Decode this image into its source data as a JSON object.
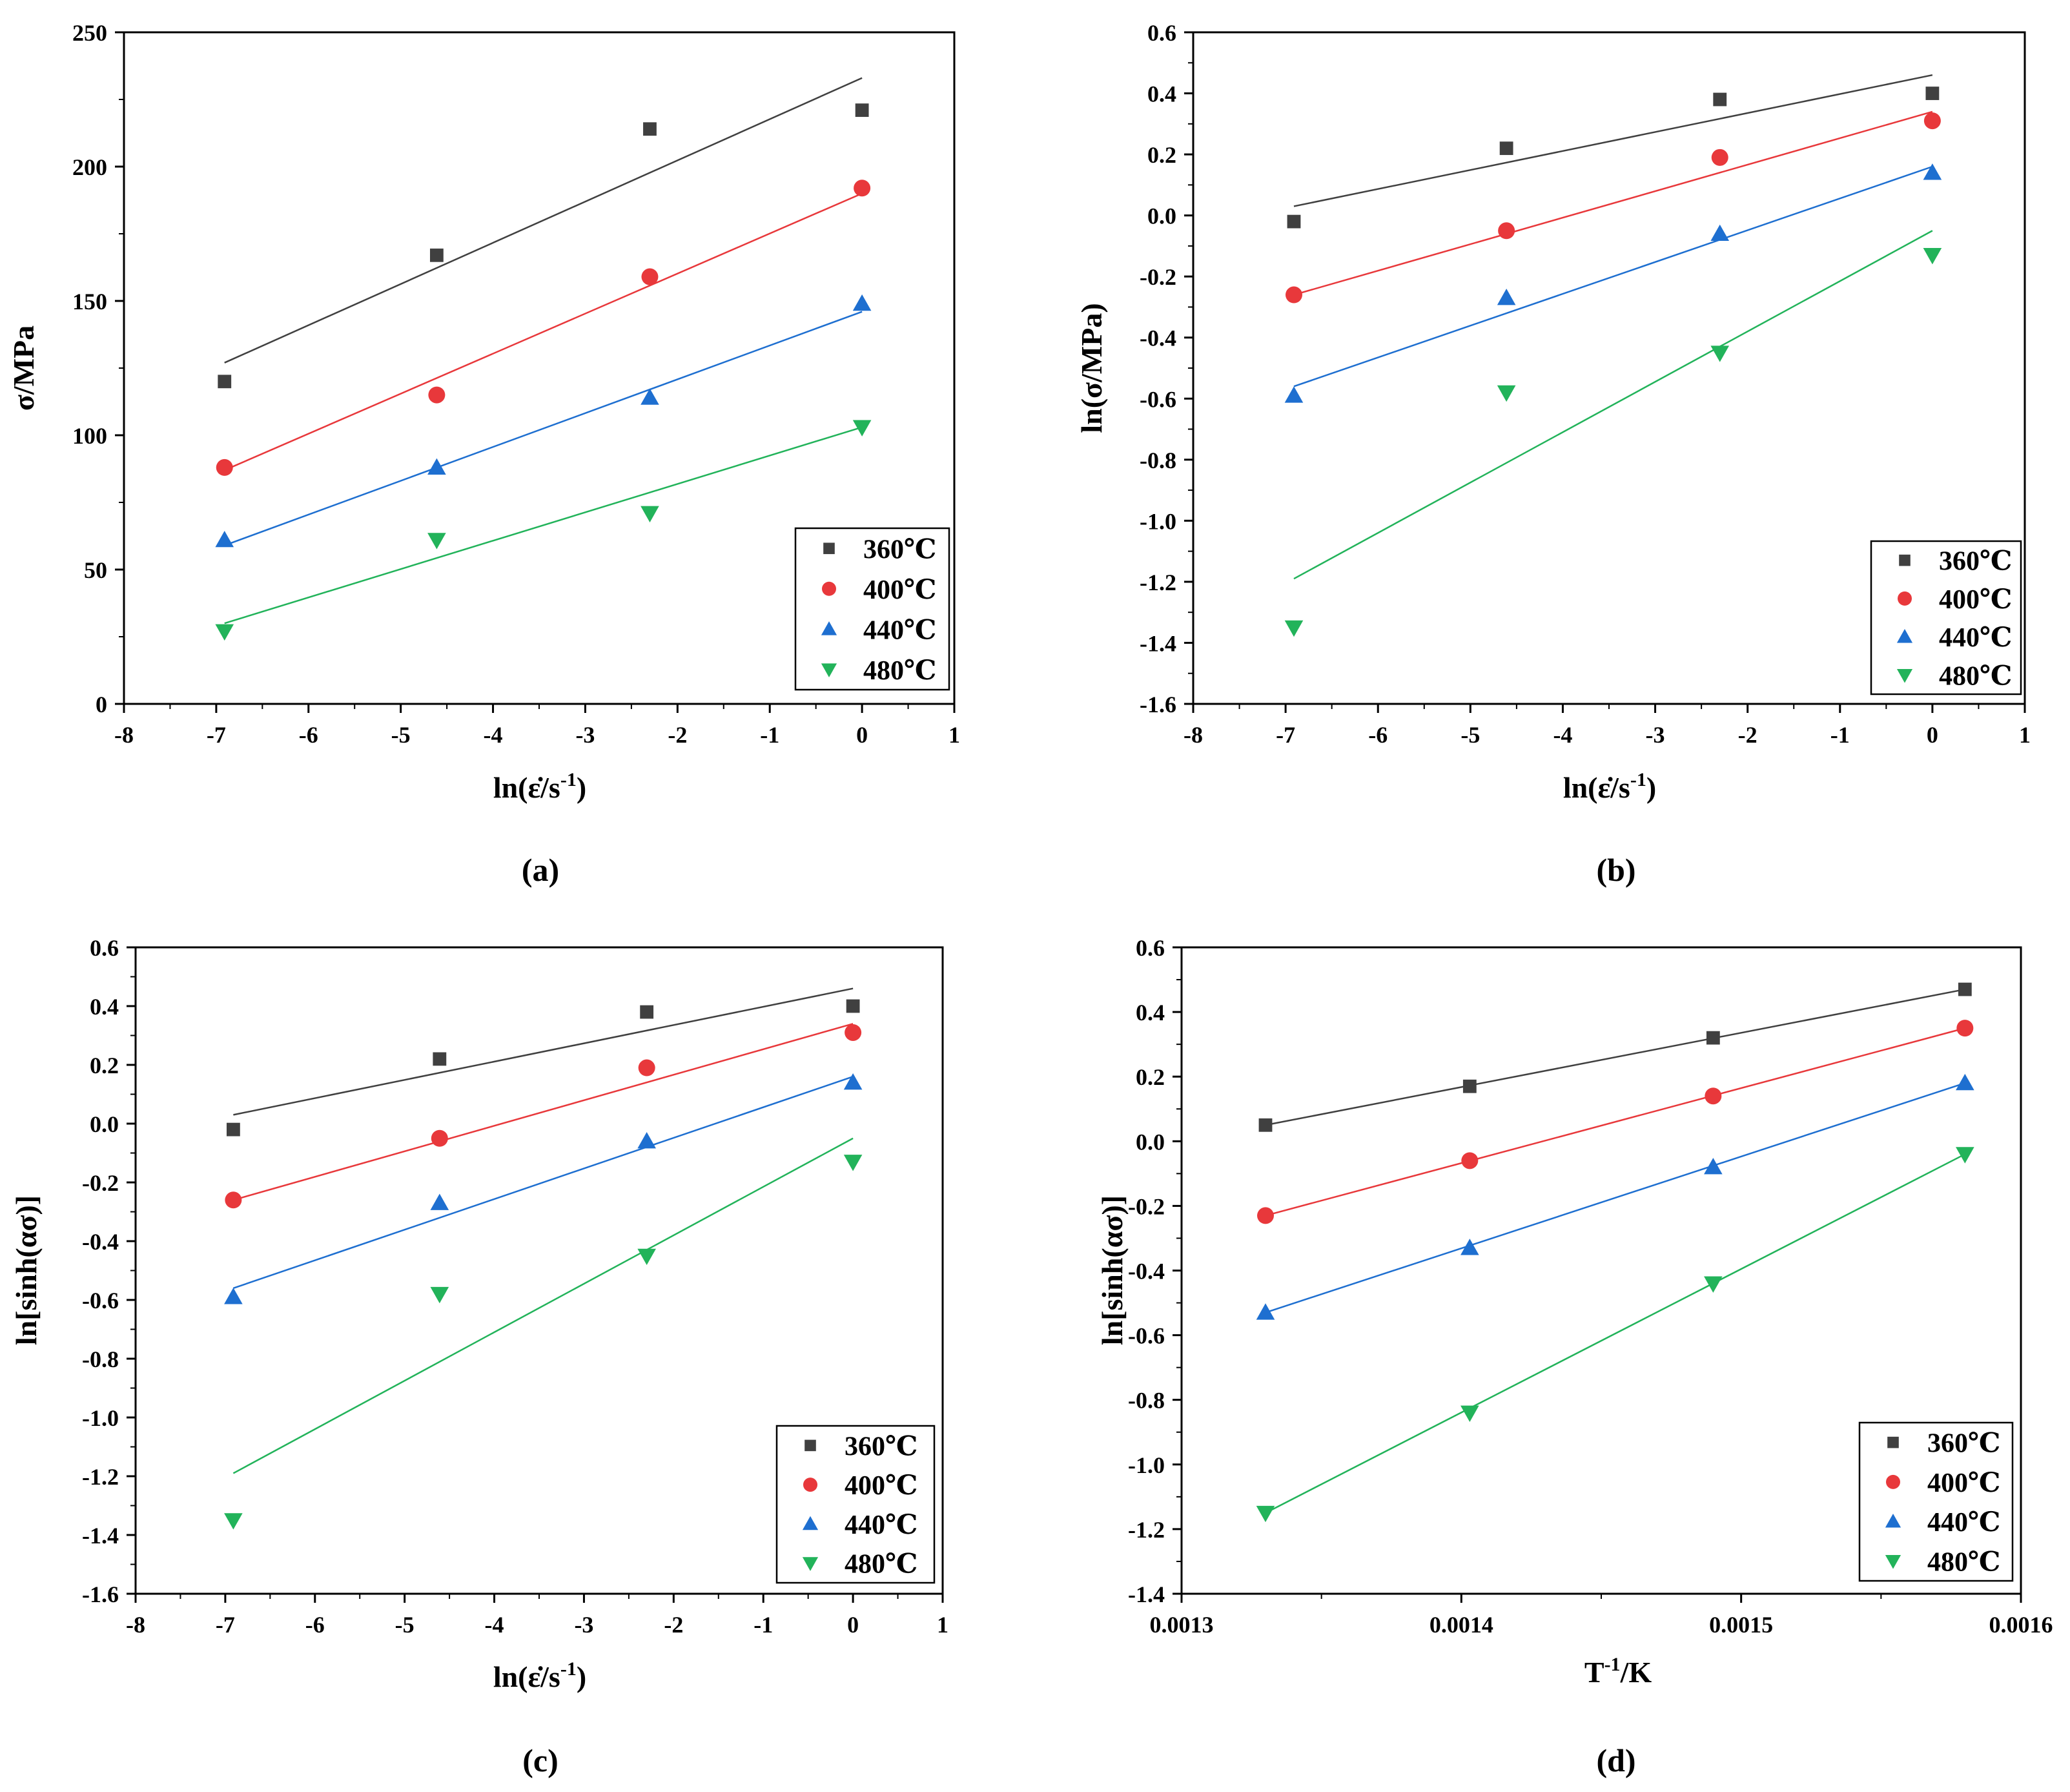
{
  "colors": {
    "s360": "#404040",
    "s400": "#e8383b",
    "s440": "#1e6fd0",
    "s480": "#22b35a"
  },
  "chart_data": [
    {
      "type": "scatter",
      "caption": "(a)",
      "ylabel": "σ/MPa",
      "xlim": [
        -8,
        1
      ],
      "ylim": [
        0,
        250
      ],
      "xticks": [
        -8,
        -7,
        -6,
        -5,
        -4,
        -3,
        -2,
        -1,
        0,
        1
      ],
      "yticks": [
        0,
        50,
        100,
        150,
        200,
        250
      ],
      "xtick_labels": [
        "-8",
        "-7",
        "-6",
        "-5",
        "-4",
        "-3",
        "-2",
        "-1",
        "0",
        "1"
      ],
      "ytick_labels": [
        "0",
        "50",
        "100",
        "150",
        "200",
        "250"
      ],
      "legend_position": "bottom-right",
      "series": [
        {
          "name": "360℃",
          "marker": "square",
          "x": [
            -6.91,
            -4.61,
            -2.3,
            0
          ],
          "y": [
            120,
            167,
            214,
            221
          ],
          "fit": [
            [
              -6.91,
              127
            ],
            [
              0,
              233
            ]
          ]
        },
        {
          "name": "400℃",
          "marker": "circle",
          "x": [
            -6.91,
            -4.61,
            -2.3,
            0
          ],
          "y": [
            88,
            115,
            159,
            192
          ],
          "fit": [
            [
              -6.91,
              87
            ],
            [
              0,
              190
            ]
          ]
        },
        {
          "name": "440℃",
          "marker": "triangle-up",
          "x": [
            -6.91,
            -4.61,
            -2.3,
            0
          ],
          "y": [
            61,
            88,
            114,
            149
          ],
          "fit": [
            [
              -6.91,
              59
            ],
            [
              0,
              146
            ]
          ]
        },
        {
          "name": "480℃",
          "marker": "triangle-down",
          "x": [
            -6.91,
            -4.61,
            -2.3,
            0
          ],
          "y": [
            27,
            61,
            71,
            103
          ],
          "fit": [
            [
              -6.91,
              30
            ],
            [
              0,
              103
            ]
          ]
        }
      ]
    },
    {
      "type": "scatter",
      "caption": "(b)",
      "ylabel": "ln(σ/MPa)",
      "xlim": [
        -8,
        1
      ],
      "ylim": [
        -1.6,
        0.6
      ],
      "xticks": [
        -8,
        -7,
        -6,
        -5,
        -4,
        -3,
        -2,
        -1,
        0,
        1
      ],
      "yticks": [
        -1.6,
        -1.4,
        -1.2,
        -1.0,
        -0.8,
        -0.6,
        -0.4,
        -0.2,
        0.0,
        0.2,
        0.4,
        0.6
      ],
      "xtick_labels": [
        "-8",
        "-7",
        "-6",
        "-5",
        "-4",
        "-3",
        "-2",
        "-1",
        "0",
        "1"
      ],
      "ytick_labels": [
        "-1.6",
        "-1.4",
        "-1.2",
        "-1.0",
        "-0.8",
        "-0.6",
        "-0.4",
        "-0.2",
        "0.0",
        "0.2",
        "0.4",
        "0.6"
      ],
      "legend_position": "bottom-right",
      "series": [
        {
          "name": "360℃",
          "marker": "square",
          "x": [
            -6.91,
            -4.61,
            -2.3,
            0
          ],
          "y": [
            -0.02,
            0.22,
            0.38,
            0.4
          ],
          "fit": [
            [
              -6.91,
              0.03
            ],
            [
              0,
              0.46
            ]
          ]
        },
        {
          "name": "400℃",
          "marker": "circle",
          "x": [
            -6.91,
            -4.61,
            -2.3,
            0
          ],
          "y": [
            -0.26,
            -0.05,
            0.19,
            0.31
          ],
          "fit": [
            [
              -6.91,
              -0.26
            ],
            [
              0,
              0.34
            ]
          ]
        },
        {
          "name": "440℃",
          "marker": "triangle-up",
          "x": [
            -6.91,
            -4.61,
            -2.3,
            0
          ],
          "y": [
            -0.59,
            -0.27,
            -0.06,
            0.14
          ],
          "fit": [
            [
              -6.91,
              -0.56
            ],
            [
              0,
              0.16
            ]
          ]
        },
        {
          "name": "480℃",
          "marker": "triangle-down",
          "x": [
            -6.91,
            -4.61,
            -2.3,
            0
          ],
          "y": [
            -1.35,
            -0.58,
            -0.45,
            -0.13
          ],
          "fit": [
            [
              -6.91,
              -1.19
            ],
            [
              0,
              -0.05
            ]
          ]
        }
      ]
    },
    {
      "type": "scatter",
      "caption": "(c)",
      "ylabel": "ln[sinh(ασ)]",
      "xlim": [
        -8,
        1
      ],
      "ylim": [
        -1.6,
        0.6
      ],
      "xticks": [
        -8,
        -7,
        -6,
        -5,
        -4,
        -3,
        -2,
        -1,
        0,
        1
      ],
      "yticks": [
        -1.6,
        -1.4,
        -1.2,
        -1.0,
        -0.8,
        -0.6,
        -0.4,
        -0.2,
        0.0,
        0.2,
        0.4,
        0.6
      ],
      "xtick_labels": [
        "-8",
        "-7",
        "-6",
        "-5",
        "-4",
        "-3",
        "-2",
        "-1",
        "0",
        "1"
      ],
      "ytick_labels": [
        "-1.6",
        "-1.4",
        "-1.2",
        "-1.0",
        "-0.8",
        "-0.6",
        "-0.4",
        "-0.2",
        "0.0",
        "0.2",
        "0.4",
        "0.6"
      ],
      "legend_position": "bottom-right",
      "series": [
        {
          "name": "360℃",
          "marker": "square",
          "x": [
            -6.91,
            -4.61,
            -2.3,
            0
          ],
          "y": [
            -0.02,
            0.22,
            0.38,
            0.4
          ],
          "fit": [
            [
              -6.91,
              0.03
            ],
            [
              0,
              0.46
            ]
          ]
        },
        {
          "name": "400℃",
          "marker": "circle",
          "x": [
            -6.91,
            -4.61,
            -2.3,
            0
          ],
          "y": [
            -0.26,
            -0.05,
            0.19,
            0.31
          ],
          "fit": [
            [
              -6.91,
              -0.26
            ],
            [
              0,
              0.34
            ]
          ]
        },
        {
          "name": "440℃",
          "marker": "triangle-up",
          "x": [
            -6.91,
            -4.61,
            -2.3,
            0
          ],
          "y": [
            -0.59,
            -0.27,
            -0.06,
            0.14
          ],
          "fit": [
            [
              -6.91,
              -0.56
            ],
            [
              0,
              0.16
            ]
          ]
        },
        {
          "name": "480℃",
          "marker": "triangle-down",
          "x": [
            -6.91,
            -4.61,
            -2.3,
            0
          ],
          "y": [
            -1.35,
            -0.58,
            -0.45,
            -0.13
          ],
          "fit": [
            [
              -6.91,
              -1.19
            ],
            [
              0,
              -0.05
            ]
          ]
        }
      ]
    },
    {
      "type": "scatter",
      "caption": "(d)",
      "ylabel": "ln[sinh(ασ)]",
      "xlim": [
        0.0013,
        0.0016
      ],
      "ylim": [
        -1.4,
        0.6
      ],
      "xticks": [
        0.0013,
        0.0014,
        0.0015,
        0.0016
      ],
      "yticks": [
        -1.4,
        -1.2,
        -1.0,
        -0.8,
        -0.6,
        -0.4,
        -0.2,
        0.0,
        0.2,
        0.4,
        0.6
      ],
      "xtick_labels": [
        "0.0013",
        "0.0014",
        "0.0015",
        "0.0016"
      ],
      "ytick_labels": [
        "-1.4",
        "-1.2",
        "-1.0",
        "-0.8",
        "-0.6",
        "-0.4",
        "-0.2",
        "0.0",
        "0.2",
        "0.4",
        "0.6"
      ],
      "legend_position": "bottom-right",
      "series": [
        {
          "name": "360℃",
          "marker": "square",
          "x": [
            0.00133,
            0.001403,
            0.00149,
            0.00158
          ],
          "y": [
            0.05,
            0.17,
            0.32,
            0.47
          ],
          "fit": [
            [
              0.00133,
              0.05
            ],
            [
              0.00158,
              0.47
            ]
          ]
        },
        {
          "name": "400℃",
          "marker": "circle",
          "x": [
            0.00133,
            0.001403,
            0.00149,
            0.00158
          ],
          "y": [
            -0.23,
            -0.06,
            0.14,
            0.35
          ],
          "fit": [
            [
              0.00133,
              -0.23
            ],
            [
              0.00158,
              0.35
            ]
          ]
        },
        {
          "name": "440℃",
          "marker": "triangle-up",
          "x": [
            0.00133,
            0.001403,
            0.00149,
            0.00158
          ],
          "y": [
            -0.53,
            -0.33,
            -0.08,
            0.18
          ],
          "fit": [
            [
              0.00133,
              -0.53
            ],
            [
              0.00158,
              0.18
            ]
          ]
        },
        {
          "name": "480℃",
          "marker": "triangle-down",
          "x": [
            0.00133,
            0.001403,
            0.00149,
            0.00158
          ],
          "y": [
            -1.15,
            -0.84,
            -0.44,
            -0.04
          ],
          "fit": [
            [
              0.00133,
              -1.15
            ],
            [
              0.00158,
              -0.04
            ]
          ]
        }
      ]
    }
  ]
}
